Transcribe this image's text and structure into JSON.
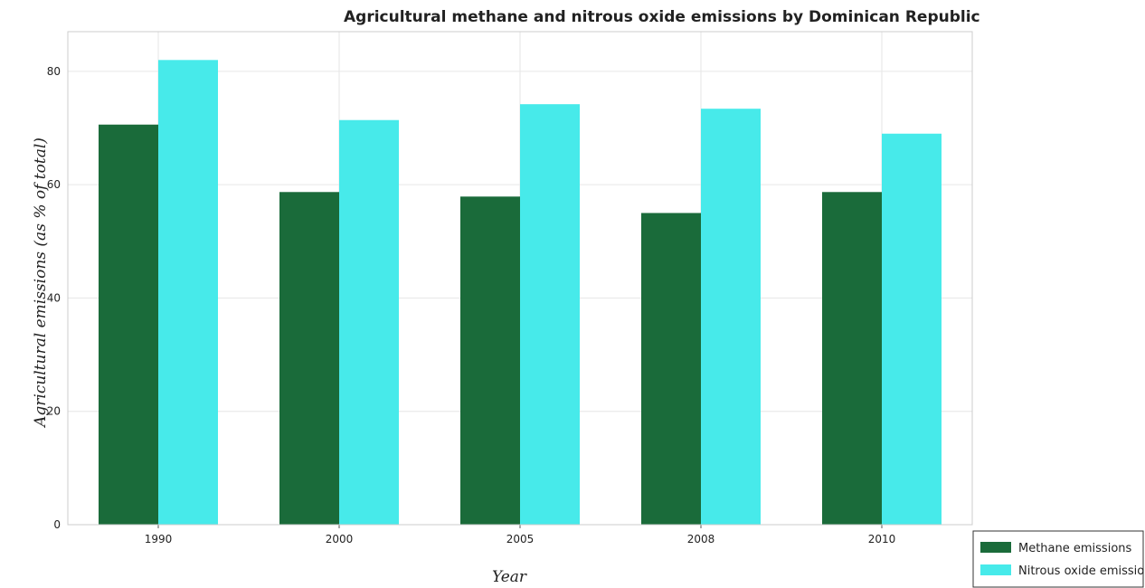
{
  "chart_data": {
    "type": "bar",
    "title": "Agricultural methane and nitrous oxide emissions by Dominican Republic",
    "xlabel": "Year",
    "ylabel": "Agricultural emissions (as % of total)",
    "categories": [
      "1990",
      "2000",
      "2005",
      "2008",
      "2010"
    ],
    "series": [
      {
        "name": "Methane emissions",
        "color": "#1a6b3a",
        "values": [
          70.6,
          58.7,
          57.9,
          55.0,
          58.7
        ]
      },
      {
        "name": "Nitrous oxide emissions",
        "color": "#47eaea",
        "values": [
          82.0,
          71.4,
          74.2,
          73.4,
          69.0
        ]
      }
    ],
    "ylim": [
      0,
      87
    ],
    "yticks": [
      0,
      20,
      40,
      60,
      80
    ],
    "grid": true,
    "legend_position": "bottom-right"
  }
}
